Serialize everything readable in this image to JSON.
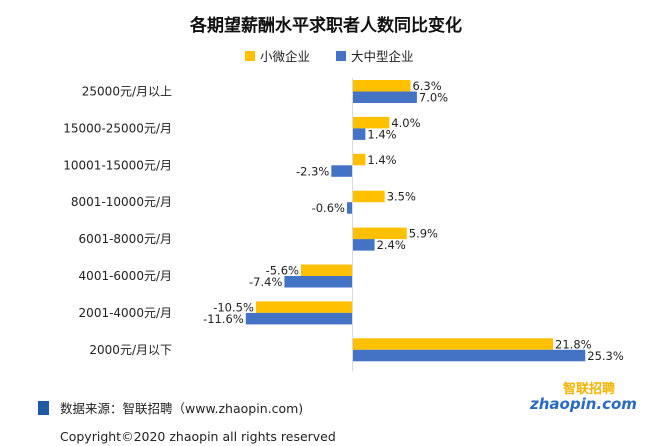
{
  "chart_data": {
    "type": "bar",
    "orientation": "horizontal",
    "title": "各期望薪酬水平求职者人数同比变化",
    "categories": [
      "25000元/月以上",
      "15000-25000元/月",
      "10001-15000元/月",
      "8001-10000元/月",
      "6001-8000元/月",
      "4001-6000元/月",
      "2001-4000元/月",
      "2000元/月以下"
    ],
    "series": [
      {
        "name": "小微企业",
        "color": "#FFC000",
        "values": [
          6.3,
          4.0,
          1.4,
          3.5,
          5.9,
          -5.6,
          -10.5,
          21.8
        ],
        "labels": [
          "6.3%",
          "4.0%",
          "1.4%",
          "3.5%",
          "5.9%",
          "-5.6%",
          "-10.5%",
          "21.8%"
        ]
      },
      {
        "name": "大中型企业",
        "color": "#4472C4",
        "values": [
          7.0,
          1.4,
          -2.3,
          -0.6,
          2.4,
          -7.4,
          -11.6,
          25.3
        ],
        "labels": [
          "7.0%",
          "1.4%",
          "-2.3%",
          "-0.6%",
          "2.4%",
          "-7.4%",
          "-11.6%",
          "25.3%"
        ]
      }
    ],
    "value_unit": "%",
    "legend_position": "top",
    "grid": false
  },
  "footer": {
    "source": "数据来源：智联招聘（www.zhaopin.com)",
    "copyright": "Copyright©2020 zhaopin all rights reserved",
    "source_marker_color": "#1F5AA6"
  },
  "logo": {
    "top_text": "智联招聘",
    "main_text": "zhaopin.com"
  }
}
